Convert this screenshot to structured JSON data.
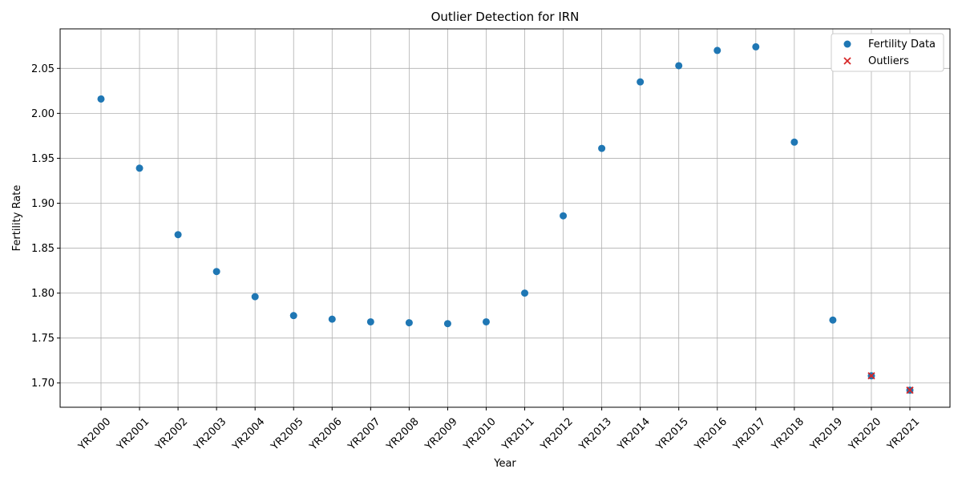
{
  "chart_data": {
    "type": "scatter",
    "title": "Outlier Detection for IRN",
    "xlabel": "Year",
    "ylabel": "Fertility Rate",
    "categories": [
      "YR2000",
      "YR2001",
      "YR2002",
      "YR2003",
      "YR2004",
      "YR2005",
      "YR2006",
      "YR2007",
      "YR2008",
      "YR2009",
      "YR2010",
      "YR2011",
      "YR2012",
      "YR2013",
      "YR2014",
      "YR2015",
      "YR2016",
      "YR2017",
      "YR2018",
      "YR2019",
      "YR2020",
      "YR2021"
    ],
    "ylim": [
      1.673,
      2.094
    ],
    "yticks": [
      1.7,
      1.75,
      1.8,
      1.85,
      1.9,
      1.95,
      2.0,
      2.05
    ],
    "ytick_labels": [
      "1.70",
      "1.75",
      "1.80",
      "1.85",
      "1.90",
      "1.95",
      "2.00",
      "2.05"
    ],
    "grid": true,
    "legend_position": "top-right",
    "series": [
      {
        "name": "Fertility Data",
        "marker": "circle",
        "color": "#1f77b4",
        "values": [
          2.016,
          1.939,
          1.865,
          1.824,
          1.796,
          1.775,
          1.771,
          1.768,
          1.767,
          1.766,
          1.768,
          1.8,
          1.886,
          1.961,
          2.035,
          2.053,
          2.07,
          2.074,
          1.968,
          1.77,
          1.708,
          1.692
        ]
      },
      {
        "name": "Outliers",
        "marker": "x",
        "color": "#d62728",
        "points": [
          {
            "x": "YR2020",
            "y": 1.708
          },
          {
            "x": "YR2021",
            "y": 1.692
          }
        ]
      }
    ]
  }
}
